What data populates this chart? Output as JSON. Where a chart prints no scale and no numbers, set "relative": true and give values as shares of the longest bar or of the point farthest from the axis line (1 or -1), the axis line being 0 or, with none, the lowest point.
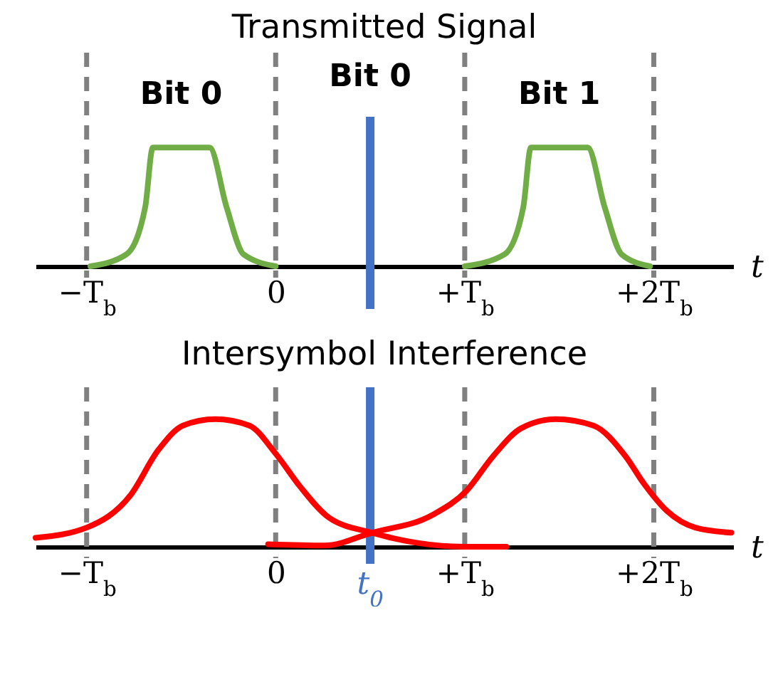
{
  "chart_data": [
    {
      "type": "line",
      "title": "Transmitted Signal",
      "xlabel": "t",
      "relative": true,
      "x": [
        -0.98,
        -0.79,
        -0.69,
        -0.65,
        -0.5,
        -0.35,
        -0.26,
        -0.17,
        0,
        0.5,
        1.0,
        1.21,
        1.31,
        1.35,
        1.5,
        1.65,
        1.74,
        1.83,
        1.98
      ],
      "series": [
        {
          "color": "#70ad47",
          "values": [
            0,
            0.1,
            0.5,
            1,
            1,
            1,
            0.5,
            0.1,
            0,
            null,
            0,
            0.1,
            0.5,
            1,
            1,
            1,
            0.5,
            0.1,
            0
          ]
        }
      ],
      "xlim": [
        -1.27,
        2.42
      ],
      "xticks": [
        {
          "value": -1,
          "label": "−T$_{b}$"
        },
        0,
        {
          "value": 1,
          "label": "+T$_{b}$"
        },
        {
          "value": 2,
          "label": "+2T$_{b}$"
        }
      ],
      "ref_lines": [
        {
          "axis": "x",
          "value": -1,
          "label": null,
          "color": "#808080",
          "line_style": "dashed"
        },
        {
          "axis": "x",
          "value": 0,
          "label": null,
          "color": "#808080",
          "line_style": "dashed"
        },
        {
          "axis": "x",
          "value": 1,
          "label": null,
          "color": "#808080",
          "line_style": "dashed"
        },
        {
          "axis": "x",
          "value": 2,
          "label": null,
          "color": "#808080",
          "line_style": "dashed"
        },
        {
          "axis": "x",
          "value": 0.5,
          "label": null,
          "color": "#4472c4",
          "line_style": "solid"
        }
      ],
      "annotations": [
        "Bit 0",
        "Bit 0",
        "Bit 1"
      ],
      "grid": false,
      "marker": "none",
      "line_style": "solid"
    },
    {
      "type": "line",
      "title": "Intersymbol Interference",
      "xlabel": "t",
      "relative": true,
      "series": [
        {
          "color": "#ff0000",
          "x": [
            -1.27,
            -1,
            -0.77,
            -0.62,
            -0.49,
            -0.32,
            -0.14,
            0,
            0.13,
            0.28,
            0.51,
            0.75,
            1,
            1.22
          ],
          "values": [
            0.07,
            0.15,
            0.4,
            0.76,
            0.95,
            1,
            0.95,
            0.73,
            0.47,
            0.23,
            0.11,
            0.03,
            0,
            0
          ]
        },
        {
          "color": "#ff0000",
          "x": [
            -0.04,
            0.26,
            0.51,
            0.83,
            1.01,
            1.15,
            1.3,
            1.48,
            1.68,
            1.85,
            1.95,
            2.07,
            2.22,
            2.41
          ],
          "values": [
            0.02,
            0.01,
            0.11,
            0.25,
            0.44,
            0.71,
            0.93,
            1,
            0.95,
            0.71,
            0.49,
            0.28,
            0.15,
            0.11
          ]
        }
      ],
      "xlim": [
        -1.27,
        2.42
      ],
      "xticks": [
        {
          "value": -1,
          "label": "−T$_{b}$"
        },
        0,
        {
          "value": 1,
          "label": "+T$_{b}$"
        },
        {
          "value": 2,
          "label": "+2T$_{b}$"
        }
      ],
      "ref_lines": [
        {
          "axis": "x",
          "value": -1,
          "label": null,
          "color": "#808080",
          "line_style": "dashed"
        },
        {
          "axis": "x",
          "value": 0,
          "label": null,
          "color": "#808080",
          "line_style": "dashed"
        },
        {
          "axis": "x",
          "value": 1,
          "label": null,
          "color": "#808080",
          "line_style": "dashed"
        },
        {
          "axis": "x",
          "value": 2,
          "label": null,
          "color": "#808080",
          "line_style": "dashed"
        },
        {
          "axis": "x",
          "value": 0.5,
          "label": "t$_{0}$",
          "color": "#4472c4",
          "line_style": "solid"
        }
      ],
      "grid": false,
      "marker": "none",
      "line_style": "solid"
    }
  ]
}
